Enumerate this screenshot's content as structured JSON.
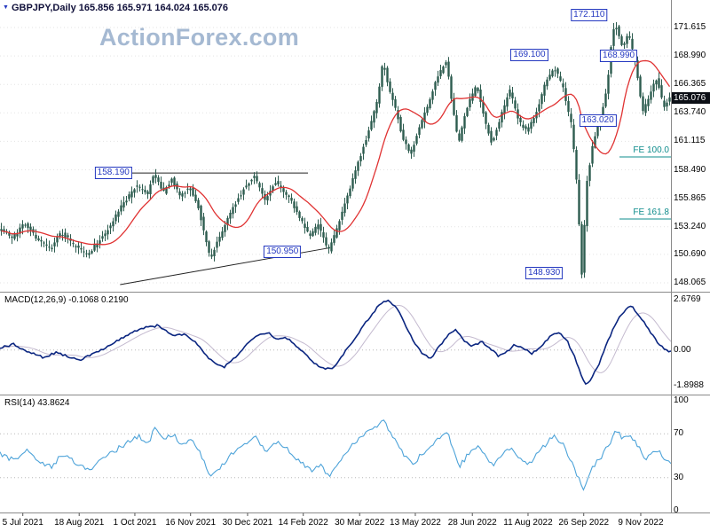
{
  "title": {
    "symbol": "GBPJPY,Daily",
    "values": "165.856 165.971 164.024 165.076"
  },
  "icons": {
    "symbol_dropdown": "▼"
  },
  "watermark": "ActionForex.com",
  "colors": {
    "candle": "#2d5c4f",
    "ma_line": "#e03232",
    "label_blue": "#2438c0",
    "watermark": "#a5b9d2",
    "macd_main": "#0a2580",
    "macd_signal": "#c4bacf",
    "rsi_line": "#4da3d9",
    "fib_teal": "#0e8c8c",
    "badge_bg": "#0c0f16",
    "grid": "#e3e3e3",
    "separator": "#8a8a8a",
    "trendline": "#222222"
  },
  "x_axis": {
    "labels": [
      {
        "text": "5 Jul 2021",
        "t": 0.034
      },
      {
        "text": "18 Aug 2021",
        "t": 0.118
      },
      {
        "text": "1 Oct 2021",
        "t": 0.201
      },
      {
        "text": "16 Nov 2021",
        "t": 0.284
      },
      {
        "text": "30 Dec 2021",
        "t": 0.369
      },
      {
        "text": "14 Feb 2022",
        "t": 0.452
      },
      {
        "text": "30 Mar 2022",
        "t": 0.536
      },
      {
        "text": "13 May 2022",
        "t": 0.619
      },
      {
        "text": "28 Jun 2022",
        "t": 0.704
      },
      {
        "text": "11 Aug 2022",
        "t": 0.787
      },
      {
        "text": "26 Sep 2022",
        "t": 0.87
      },
      {
        "text": "9 Nov 2022",
        "t": 0.955
      }
    ]
  },
  "chart_data": [
    {
      "panel": "price",
      "type": "candlestick",
      "symbol": "GBPJPY",
      "timeframe": "Daily",
      "open": 165.856,
      "high": 165.971,
      "low": 164.024,
      "close": 165.076,
      "current_price": "165.076",
      "y_ticks": [
        "171.615",
        "168.990",
        "166.365",
        "163.740",
        "161.115",
        "158.490",
        "155.865",
        "153.240",
        "150.690",
        "148.065"
      ],
      "annotations": [
        {
          "text": "158.190",
          "price": 158.19,
          "t": 0.169
        },
        {
          "text": "150.950",
          "price": 150.95,
          "t": 0.421
        },
        {
          "text": "148.930",
          "price": 148.93,
          "t": 0.811
        },
        {
          "text": "172.110",
          "price": 172.11,
          "t": 0.878,
          "dy": -8
        },
        {
          "text": "169.100",
          "price": 169.1,
          "t": 0.789
        },
        {
          "text": "168.990",
          "price": 168.99,
          "t": 0.922
        },
        {
          "text": "163.020",
          "price": 163.02,
          "t": 0.891
        }
      ],
      "fib_extension_labels": [
        {
          "text": "FE 100.0",
          "price": 160.25
        },
        {
          "text": "FE 161.8",
          "price": 154.52
        }
      ],
      "trendlines": [
        {
          "kind": "horizontal",
          "price": 158.19,
          "t1": 0.148,
          "t2": 0.459
        },
        {
          "kind": "sloped",
          "t1": 0.179,
          "price1": 147.9,
          "t2": 0.492,
          "price2": 151.3
        }
      ],
      "ma_window": 16,
      "price_path": [
        [
          0.0,
          153.2
        ],
        [
          0.02,
          152.2
        ],
        [
          0.04,
          153.6
        ],
        [
          0.06,
          151.9
        ],
        [
          0.077,
          151.1
        ],
        [
          0.093,
          152.8
        ],
        [
          0.112,
          151.5
        ],
        [
          0.132,
          150.7
        ],
        [
          0.148,
          151.8
        ],
        [
          0.165,
          153.2
        ],
        [
          0.185,
          155.3
        ],
        [
          0.205,
          157.0
        ],
        [
          0.222,
          156.2
        ],
        [
          0.231,
          158.2
        ],
        [
          0.245,
          156.3
        ],
        [
          0.258,
          157.6
        ],
        [
          0.271,
          156.0
        ],
        [
          0.284,
          157.0
        ],
        [
          0.298,
          155.0
        ],
        [
          0.315,
          150.3
        ],
        [
          0.331,
          152.5
        ],
        [
          0.347,
          154.8
        ],
        [
          0.364,
          156.6
        ],
        [
          0.381,
          158.0
        ],
        [
          0.397,
          155.6
        ],
        [
          0.413,
          157.4
        ],
        [
          0.43,
          156.2
        ],
        [
          0.447,
          154.3
        ],
        [
          0.463,
          152.4
        ],
        [
          0.476,
          153.5
        ],
        [
          0.491,
          150.95
        ],
        [
          0.503,
          152.9
        ],
        [
          0.519,
          155.8
        ],
        [
          0.534,
          158.8
        ],
        [
          0.55,
          161.8
        ],
        [
          0.563,
          164.5
        ],
        [
          0.573,
          168.5
        ],
        [
          0.582,
          166.0
        ],
        [
          0.593,
          163.8
        ],
        [
          0.603,
          161.2
        ],
        [
          0.614,
          159.9
        ],
        [
          0.627,
          162.3
        ],
        [
          0.64,
          164.5
        ],
        [
          0.653,
          166.8
        ],
        [
          0.667,
          168.6
        ],
        [
          0.677,
          164.0
        ],
        [
          0.685,
          160.9
        ],
        [
          0.698,
          164.2
        ],
        [
          0.712,
          166.3
        ],
        [
          0.725,
          163.0
        ],
        [
          0.735,
          161.0
        ],
        [
          0.749,
          163.5
        ],
        [
          0.762,
          165.8
        ],
        [
          0.775,
          163.0
        ],
        [
          0.788,
          162.0
        ],
        [
          0.802,
          164.0
        ],
        [
          0.815,
          166.5
        ],
        [
          0.828,
          168.0
        ],
        [
          0.841,
          166.0
        ],
        [
          0.854,
          162.5
        ],
        [
          0.862,
          157.0
        ],
        [
          0.869,
          148.93
        ],
        [
          0.877,
          157.5
        ],
        [
          0.886,
          161.0
        ],
        [
          0.897,
          163.3
        ],
        [
          0.907,
          166.2
        ],
        [
          0.912,
          169.5
        ],
        [
          0.918,
          172.11
        ],
        [
          0.929,
          169.8
        ],
        [
          0.939,
          171.0
        ],
        [
          0.95,
          168.0
        ],
        [
          0.96,
          163.8
        ],
        [
          0.971,
          165.5
        ],
        [
          0.981,
          167.0
        ],
        [
          0.991,
          164.2
        ],
        [
          1.0,
          165.08
        ]
      ]
    },
    {
      "panel": "macd",
      "type": "line",
      "label": "MACD(12,26,9) -0.1068 0.2190",
      "macd_value": -0.1068,
      "signal_value": 0.219,
      "y_ticks": [
        "2.6769",
        "0.00",
        "-1.8988"
      ],
      "path": [
        [
          0.0,
          0.1
        ],
        [
          0.02,
          0.3
        ],
        [
          0.045,
          -0.15
        ],
        [
          0.065,
          -0.4
        ],
        [
          0.085,
          -0.1
        ],
        [
          0.1,
          -0.35
        ],
        [
          0.12,
          -0.5
        ],
        [
          0.14,
          -0.2
        ],
        [
          0.16,
          0.2
        ],
        [
          0.185,
          0.7
        ],
        [
          0.21,
          1.15
        ],
        [
          0.235,
          1.3
        ],
        [
          0.25,
          0.95
        ],
        [
          0.262,
          0.75
        ],
        [
          0.275,
          0.85
        ],
        [
          0.29,
          0.45
        ],
        [
          0.305,
          -0.2
        ],
        [
          0.322,
          -0.8
        ],
        [
          0.335,
          -0.9
        ],
        [
          0.35,
          -0.4
        ],
        [
          0.368,
          0.3
        ],
        [
          0.385,
          0.85
        ],
        [
          0.4,
          0.95
        ],
        [
          0.413,
          0.55
        ],
        [
          0.425,
          0.7
        ],
        [
          0.44,
          0.3
        ],
        [
          0.455,
          -0.25
        ],
        [
          0.468,
          -0.7
        ],
        [
          0.48,
          -0.95
        ],
        [
          0.495,
          -1.0
        ],
        [
          0.51,
          -0.3
        ],
        [
          0.53,
          0.7
        ],
        [
          0.55,
          1.7
        ],
        [
          0.565,
          2.4
        ],
        [
          0.578,
          2.6769
        ],
        [
          0.592,
          2.2
        ],
        [
          0.605,
          1.3
        ],
        [
          0.617,
          0.4
        ],
        [
          0.63,
          -0.2
        ],
        [
          0.642,
          -0.45
        ],
        [
          0.655,
          0.2
        ],
        [
          0.668,
          0.8
        ],
        [
          0.68,
          1.1
        ],
        [
          0.692,
          0.5
        ],
        [
          0.705,
          0.2
        ],
        [
          0.718,
          0.45
        ],
        [
          0.73,
          0.1
        ],
        [
          0.742,
          -0.3
        ],
        [
          0.755,
          -0.1
        ],
        [
          0.768,
          0.3
        ],
        [
          0.78,
          0.1
        ],
        [
          0.793,
          -0.2
        ],
        [
          0.806,
          0.2
        ],
        [
          0.82,
          0.7
        ],
        [
          0.833,
          0.95
        ],
        [
          0.845,
          0.5
        ],
        [
          0.858,
          -0.5
        ],
        [
          0.866,
          -1.3
        ],
        [
          0.874,
          -1.8988
        ],
        [
          0.882,
          -1.5
        ],
        [
          0.892,
          -0.8
        ],
        [
          0.903,
          0.2
        ],
        [
          0.915,
          1.2
        ],
        [
          0.928,
          2.0
        ],
        [
          0.94,
          2.35
        ],
        [
          0.952,
          1.9
        ],
        [
          0.965,
          1.2
        ],
        [
          0.978,
          0.5
        ],
        [
          0.99,
          0.05
        ],
        [
          1.0,
          -0.1068
        ]
      ]
    },
    {
      "panel": "rsi",
      "type": "line",
      "label": "RSI(14) 43.8624",
      "rsi_value": 43.8624,
      "y_ticks": [
        "100",
        "70",
        "30",
        "0"
      ],
      "dotted_levels": [
        70,
        30
      ],
      "path": [
        [
          0.0,
          52
        ],
        [
          0.02,
          46
        ],
        [
          0.04,
          56
        ],
        [
          0.06,
          43
        ],
        [
          0.077,
          40
        ],
        [
          0.093,
          52
        ],
        [
          0.112,
          44
        ],
        [
          0.132,
          36
        ],
        [
          0.148,
          46
        ],
        [
          0.165,
          52
        ],
        [
          0.185,
          60
        ],
        [
          0.205,
          68
        ],
        [
          0.222,
          62
        ],
        [
          0.231,
          78
        ],
        [
          0.245,
          64
        ],
        [
          0.258,
          70
        ],
        [
          0.271,
          60
        ],
        [
          0.284,
          65
        ],
        [
          0.298,
          52
        ],
        [
          0.315,
          31
        ],
        [
          0.331,
          42
        ],
        [
          0.347,
          52
        ],
        [
          0.364,
          60
        ],
        [
          0.381,
          68
        ],
        [
          0.397,
          54
        ],
        [
          0.413,
          63
        ],
        [
          0.43,
          55
        ],
        [
          0.447,
          45
        ],
        [
          0.463,
          36
        ],
        [
          0.476,
          42
        ],
        [
          0.491,
          31
        ],
        [
          0.503,
          42
        ],
        [
          0.519,
          55
        ],
        [
          0.534,
          65
        ],
        [
          0.55,
          73
        ],
        [
          0.563,
          78
        ],
        [
          0.573,
          82
        ],
        [
          0.582,
          70
        ],
        [
          0.593,
          60
        ],
        [
          0.603,
          50
        ],
        [
          0.614,
          42
        ],
        [
          0.627,
          50
        ],
        [
          0.64,
          58
        ],
        [
          0.653,
          66
        ],
        [
          0.667,
          72
        ],
        [
          0.677,
          52
        ],
        [
          0.685,
          40
        ],
        [
          0.698,
          52
        ],
        [
          0.712,
          60
        ],
        [
          0.725,
          48
        ],
        [
          0.735,
          41
        ],
        [
          0.749,
          50
        ],
        [
          0.762,
          58
        ],
        [
          0.775,
          47
        ],
        [
          0.788,
          42
        ],
        [
          0.802,
          52
        ],
        [
          0.815,
          62
        ],
        [
          0.828,
          68
        ],
        [
          0.841,
          58
        ],
        [
          0.854,
          42
        ],
        [
          0.862,
          30
        ],
        [
          0.869,
          20
        ],
        [
          0.877,
          32
        ],
        [
          0.886,
          42
        ],
        [
          0.897,
          50
        ],
        [
          0.907,
          60
        ],
        [
          0.918,
          72
        ],
        [
          0.929,
          66
        ],
        [
          0.939,
          70
        ],
        [
          0.95,
          60
        ],
        [
          0.96,
          47
        ],
        [
          0.971,
          52
        ],
        [
          0.981,
          56
        ],
        [
          0.991,
          46
        ],
        [
          1.0,
          43.86
        ]
      ]
    }
  ]
}
